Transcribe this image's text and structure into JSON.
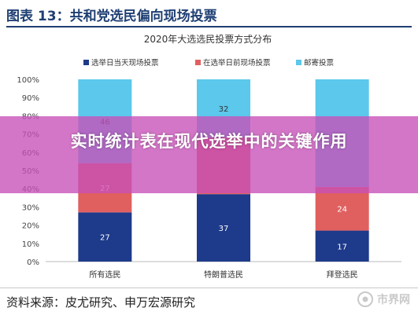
{
  "header": {
    "title": "图表 13：共和党选民偏向现场投票"
  },
  "chart_data": {
    "type": "bar",
    "stacked": true,
    "title": "2020年大选选民投票方式分布",
    "categories": [
      "所有选民",
      "特朗普选民",
      "拜登选民"
    ],
    "series": [
      {
        "name": "选举日当天现场投票",
        "color": "#1e3a8a",
        "values": [
          27,
          37,
          17
        ],
        "labels": [
          "27",
          "37",
          "17"
        ]
      },
      {
        "name": "在选举日前现场投票",
        "color": "#e06060",
        "values": [
          27,
          31,
          24
        ],
        "labels": [
          "27",
          "",
          "24"
        ]
      },
      {
        "name": "邮寄投票",
        "color": "#5bc8ec",
        "values": [
          46,
          32,
          59
        ],
        "labels": [
          "46",
          "32",
          ""
        ]
      }
    ],
    "ylim": [
      0,
      100
    ],
    "yticks": [
      "0%",
      "10%",
      "20%",
      "30%",
      "40%",
      "50%",
      "60%",
      "70%",
      "80%",
      "90%",
      "100%"
    ],
    "legend": "top",
    "grid": false
  },
  "overlay": {
    "text": "实时统计表在现代选举中的关键作用"
  },
  "footer": {
    "source": "资料来源：皮尤研究、申万宏源研究",
    "watermark": "市界网"
  }
}
